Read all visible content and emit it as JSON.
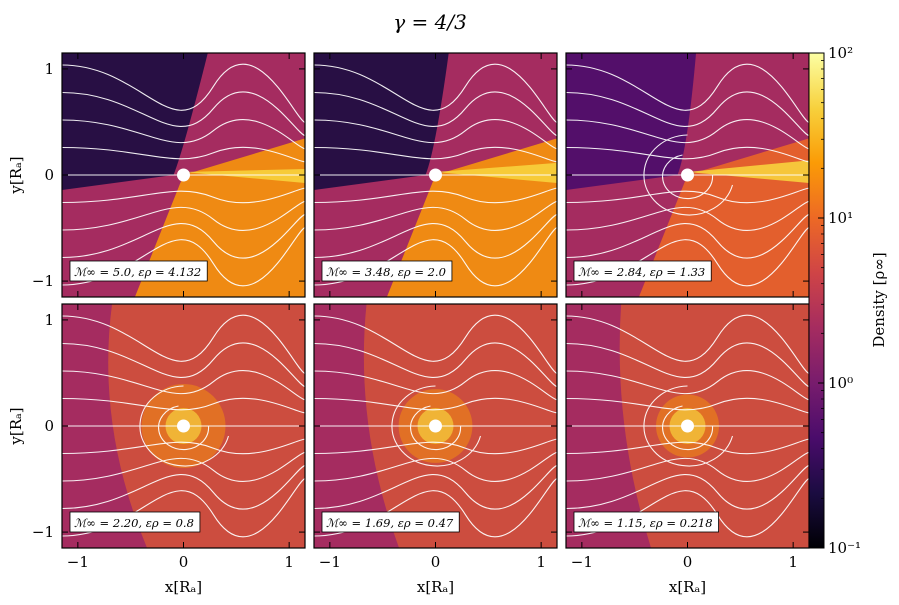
{
  "figure": {
    "title": "γ = 4/3",
    "colorbar_label": "Density [ρ∞]",
    "xlabel": "x[Rₐ]",
    "ylabel": "y[Rₐ]"
  },
  "chart_data": {
    "type": "heatmap",
    "title": "γ = 4/3",
    "xlabel": "x[Rₐ]",
    "ylabel": "y[Rₐ]",
    "xlim": [
      -1.15,
      1.15
    ],
    "ylim": [
      -1.15,
      1.15
    ],
    "x_ticks": [
      -1,
      0,
      1
    ],
    "y_ticks": [
      -1,
      0,
      1
    ],
    "colorbar": {
      "label": "Density [ρ∞]",
      "scale": "log",
      "range": [
        0.1,
        100
      ],
      "ticks": [
        {
          "value": 0.1,
          "label": "10⁻¹"
        },
        {
          "value": 1,
          "label": "10⁰"
        },
        {
          "value": 10,
          "label": "10¹"
        },
        {
          "value": 100,
          "label": "10²"
        }
      ]
    },
    "colormap": [
      "#000004",
      "#1b0c41",
      "#4a0c6b",
      "#781c6d",
      "#a52c60",
      "#cf4446",
      "#ed6925",
      "#fb9b06",
      "#f7d13d",
      "#fcffa4"
    ],
    "panels": [
      {
        "label": "ℳ∞ = 5.0, ερ = 4.132",
        "mach": 5.0,
        "epsilon_rho": 4.132
      },
      {
        "label": "ℳ∞ = 3.48, ερ = 2.0",
        "mach": 3.48,
        "epsilon_rho": 2.0
      },
      {
        "label": "ℳ∞ = 2.84, ερ = 1.33",
        "mach": 2.84,
        "epsilon_rho": 1.33
      },
      {
        "label": "ℳ∞ = 2.20, ερ = 0.8",
        "mach": 2.2,
        "epsilon_rho": 0.8
      },
      {
        "label": "ℳ∞ = 1.69, ερ = 0.47",
        "mach": 1.69,
        "epsilon_rho": 0.47
      },
      {
        "label": "ℳ∞ = 1.15, ερ = 0.218",
        "mach": 1.15,
        "epsilon_rho": 0.218
      }
    ]
  }
}
